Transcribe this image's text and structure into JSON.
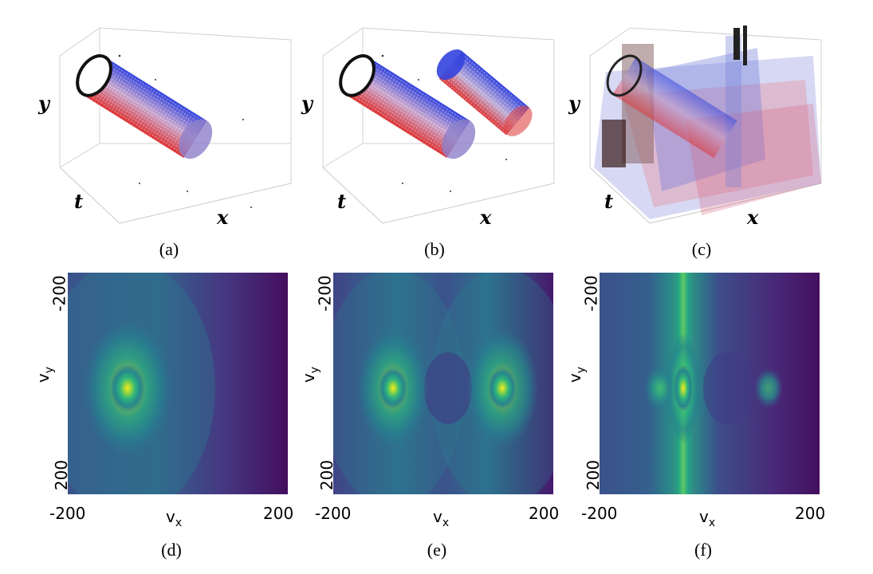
{
  "captions": [
    "(a)",
    "(b)",
    "(c)",
    "(d)",
    "(e)",
    "(f)"
  ],
  "axes3d": {
    "x": "x",
    "y": "y",
    "t": "t"
  },
  "heatmap_axes": {
    "xlabel_main": "v",
    "xlabel_sub": "x",
    "ylabel_main": "v",
    "ylabel_sub": "y",
    "xticks": [
      "-200",
      "200"
    ],
    "yticks": [
      "-200",
      "200"
    ]
  },
  "colors": {
    "blue": "#2233cc",
    "red": "#dd2222",
    "viridis_low": "#440154",
    "viridis_mid": "#21918c",
    "viridis_high": "#fde725"
  },
  "chart_data": [
    {
      "type": "heatmap",
      "title": "(d)",
      "xlabel": "v_x",
      "ylabel": "v_y",
      "xlim": [
        -200,
        200
      ],
      "ylim": [
        200,
        -200
      ],
      "peaks": [
        {
          "vx": -100,
          "vy": 0,
          "intensity": 1.0
        }
      ]
    },
    {
      "type": "heatmap",
      "title": "(e)",
      "xlabel": "v_x",
      "ylabel": "v_y",
      "xlim": [
        -200,
        200
      ],
      "ylim": [
        200,
        -200
      ],
      "peaks": [
        {
          "vx": -100,
          "vy": 0,
          "intensity": 0.9
        },
        {
          "vx": 100,
          "vy": 0,
          "intensity": 0.9
        }
      ]
    },
    {
      "type": "heatmap",
      "title": "(f)",
      "xlabel": "v_x",
      "ylabel": "v_y",
      "xlim": [
        -200,
        200
      ],
      "ylim": [
        200,
        -200
      ],
      "peaks": [
        {
          "vx": -30,
          "vy": 0,
          "intensity": 1.0
        },
        {
          "vx": -100,
          "vy": 0,
          "intensity": 0.55
        },
        {
          "vx": 100,
          "vy": 0,
          "intensity": 0.45
        }
      ]
    }
  ]
}
